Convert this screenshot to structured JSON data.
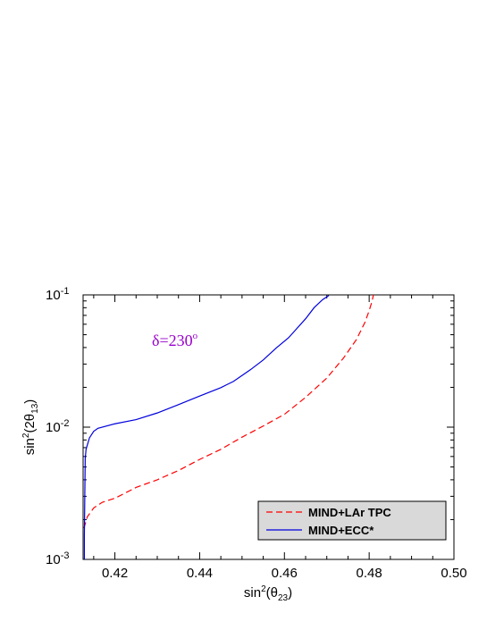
{
  "chart_data": {
    "type": "line",
    "xlabel": "sin²(θ₂₃)",
    "ylabel": "sin²(2θ₁₃)",
    "xlim": [
      0.4125,
      0.5
    ],
    "ylim": [
      0.001,
      0.1
    ],
    "yscale": "log",
    "x_ticks": [
      0.42,
      0.44,
      0.46,
      0.48,
      0.5
    ],
    "x_tick_labels": [
      "0.42",
      "0.44",
      "0.46",
      "0.48",
      "0.50"
    ],
    "y_ticks": [
      0.001,
      0.01,
      0.1
    ],
    "y_tick_labels": [
      {
        "base": "10",
        "exp": "-3"
      },
      {
        "base": "10",
        "exp": "-2"
      },
      {
        "base": "10",
        "exp": "-1"
      }
    ],
    "annotation": {
      "text": "δ=230°",
      "color": "#9900cc"
    },
    "legend": {
      "placement": "bottom-right",
      "background": "#d9d9d9"
    },
    "series": [
      {
        "name": "MIND+LAr TPC",
        "color": "#ff0000",
        "style": "dashed",
        "points": [
          [
            0.4127,
            0.00172
          ],
          [
            0.4135,
            0.0021
          ],
          [
            0.415,
            0.00245
          ],
          [
            0.417,
            0.0027
          ],
          [
            0.42,
            0.0029
          ],
          [
            0.425,
            0.0035
          ],
          [
            0.43,
            0.004
          ],
          [
            0.435,
            0.0047
          ],
          [
            0.44,
            0.0057
          ],
          [
            0.445,
            0.0068
          ],
          [
            0.45,
            0.0084
          ],
          [
            0.455,
            0.0102
          ],
          [
            0.46,
            0.0125
          ],
          [
            0.465,
            0.0168
          ],
          [
            0.47,
            0.0235
          ],
          [
            0.474,
            0.0335
          ],
          [
            0.477,
            0.046
          ],
          [
            0.479,
            0.062
          ],
          [
            0.48,
            0.076
          ],
          [
            0.4807,
            0.09
          ],
          [
            0.481,
            0.1
          ]
        ]
      },
      {
        "name": "MIND+ECC*",
        "color": "#0000dd",
        "style": "solid",
        "points": [
          [
            0.4128,
            0.001
          ],
          [
            0.4128,
            0.0015
          ],
          [
            0.4129,
            0.003
          ],
          [
            0.413,
            0.0058
          ],
          [
            0.4132,
            0.0068
          ],
          [
            0.414,
            0.0083
          ],
          [
            0.415,
            0.0093
          ],
          [
            0.416,
            0.0098
          ],
          [
            0.42,
            0.0106
          ],
          [
            0.425,
            0.0114
          ],
          [
            0.43,
            0.0128
          ],
          [
            0.435,
            0.0148
          ],
          [
            0.44,
            0.0172
          ],
          [
            0.445,
            0.0199
          ],
          [
            0.448,
            0.0222
          ],
          [
            0.452,
            0.0272
          ],
          [
            0.455,
            0.0322
          ],
          [
            0.458,
            0.0395
          ],
          [
            0.461,
            0.0475
          ],
          [
            0.463,
            0.056
          ],
          [
            0.465,
            0.066
          ],
          [
            0.467,
            0.08
          ],
          [
            0.469,
            0.092
          ],
          [
            0.4705,
            0.099
          ]
        ]
      }
    ]
  }
}
